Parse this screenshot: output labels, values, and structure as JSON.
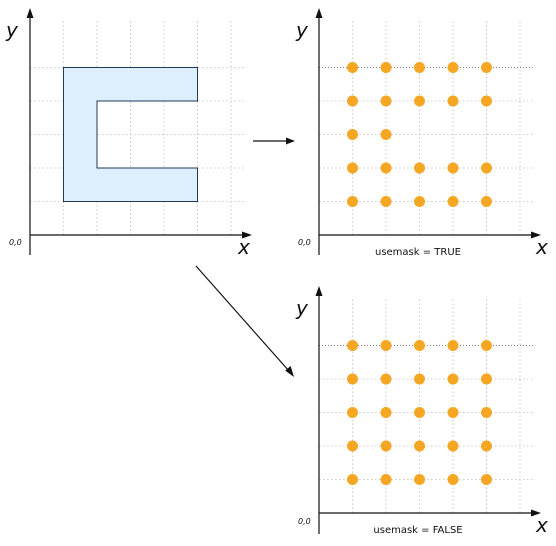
{
  "colors": {
    "polygon_fill": "#ddeefc",
    "polygon_stroke": "#1f3a5a",
    "point_fill": "#f5a623"
  },
  "panels": [
    {
      "id": "input",
      "x_label": "x",
      "y_label": "y",
      "origin_label": "0,0",
      "caption": ""
    },
    {
      "id": "mask_true",
      "x_label": "x",
      "y_label": "y",
      "origin_label": "0,0",
      "caption": "usemask = TRUE"
    },
    {
      "id": "mask_false",
      "x_label": "x",
      "y_label": "y",
      "origin_label": "0,0",
      "caption": "usemask = FALSE"
    }
  ],
  "grid": {
    "columns": [
      1,
      2,
      3,
      4,
      5
    ],
    "rows": [
      1,
      2,
      3,
      4,
      5
    ]
  },
  "polygon": {
    "shape": "C",
    "vertices": [
      [
        1,
        5
      ],
      [
        5,
        5
      ],
      [
        5,
        4
      ],
      [
        2,
        4
      ],
      [
        2,
        2
      ],
      [
        5,
        2
      ],
      [
        5,
        1
      ],
      [
        1,
        1
      ]
    ]
  },
  "points_mask_true": [
    [
      1,
      5
    ],
    [
      2,
      5
    ],
    [
      3,
      5
    ],
    [
      4,
      5
    ],
    [
      5,
      5
    ],
    [
      1,
      4
    ],
    [
      2,
      4
    ],
    [
      3,
      4
    ],
    [
      4,
      4
    ],
    [
      5,
      4
    ],
    [
      1,
      3
    ],
    [
      2,
      3
    ],
    [
      1,
      2
    ],
    [
      2,
      2
    ],
    [
      3,
      2
    ],
    [
      4,
      2
    ],
    [
      5,
      2
    ],
    [
      1,
      1
    ],
    [
      2,
      1
    ],
    [
      3,
      1
    ],
    [
      4,
      1
    ],
    [
      5,
      1
    ]
  ],
  "points_mask_false": [
    [
      1,
      5
    ],
    [
      2,
      5
    ],
    [
      3,
      5
    ],
    [
      4,
      5
    ],
    [
      5,
      5
    ],
    [
      1,
      4
    ],
    [
      2,
      4
    ],
    [
      3,
      4
    ],
    [
      4,
      4
    ],
    [
      5,
      4
    ],
    [
      1,
      3
    ],
    [
      2,
      3
    ],
    [
      3,
      3
    ],
    [
      4,
      3
    ],
    [
      5,
      3
    ],
    [
      1,
      2
    ],
    [
      2,
      2
    ],
    [
      3,
      2
    ],
    [
      4,
      2
    ],
    [
      5,
      2
    ],
    [
      1,
      1
    ],
    [
      2,
      1
    ],
    [
      3,
      1
    ],
    [
      4,
      1
    ],
    [
      5,
      1
    ]
  ]
}
